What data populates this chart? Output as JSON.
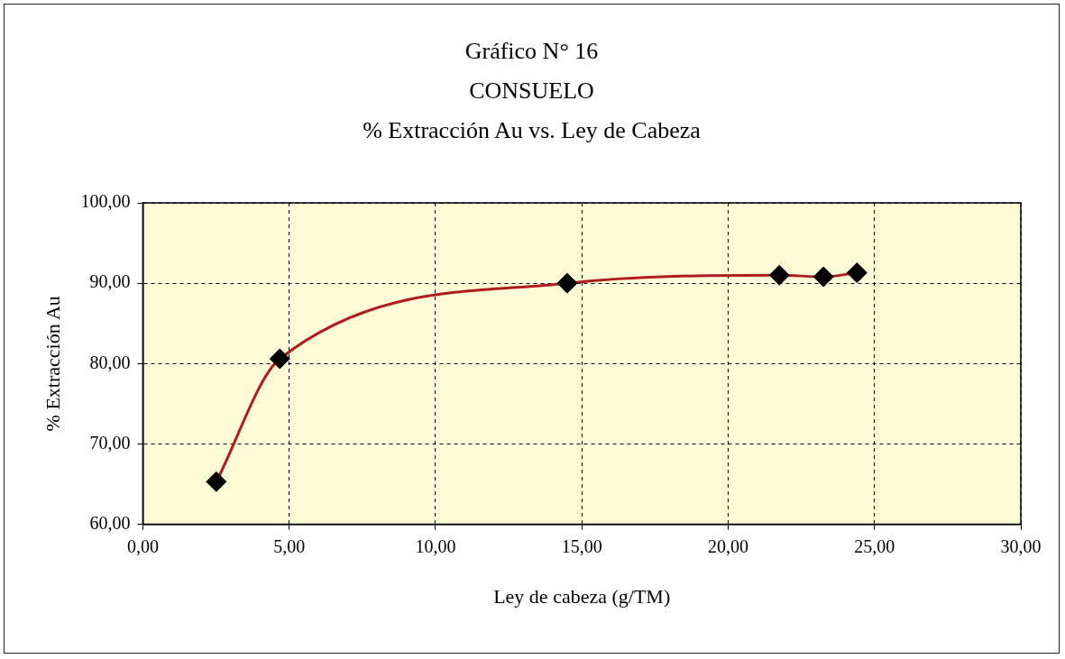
{
  "chart_data": {
    "type": "line",
    "title": "Gráfico N° 16\nCONSUELO\n% Extracción Au  vs. Ley de Cabeza",
    "xlabel": "Ley de cabeza (g/TM)",
    "ylabel": "% Extracción Au",
    "x": [
      2.51,
      4.68,
      14.5,
      21.75,
      23.26,
      24.4
    ],
    "series": [
      {
        "color": "#b01c1c",
        "values": [
          65.3,
          80.6,
          90.0,
          91.0,
          90.8,
          91.3
        ]
      }
    ],
    "xlim": [
      0,
      30
    ],
    "xticks": [
      {
        "value": 0,
        "label": "0,00"
      },
      {
        "value": 5,
        "label": "5,00"
      },
      {
        "value": 10,
        "label": "10,00"
      },
      {
        "value": 15,
        "label": "15,00"
      },
      {
        "value": 20,
        "label": "20,00"
      },
      {
        "value": 25,
        "label": "25,00"
      },
      {
        "value": 30,
        "label": "30,00"
      }
    ],
    "ylim": [
      60,
      100
    ],
    "yticks": [
      {
        "value": 60,
        "label": "60,00"
      },
      {
        "value": 70,
        "label": "70,00"
      },
      {
        "value": 80,
        "label": "80,00"
      },
      {
        "value": 90,
        "label": "90,00"
      },
      {
        "value": 100,
        "label": "100,00"
      }
    ],
    "grid": true,
    "legend": false,
    "marker": "diamond",
    "line_style": "solid"
  }
}
